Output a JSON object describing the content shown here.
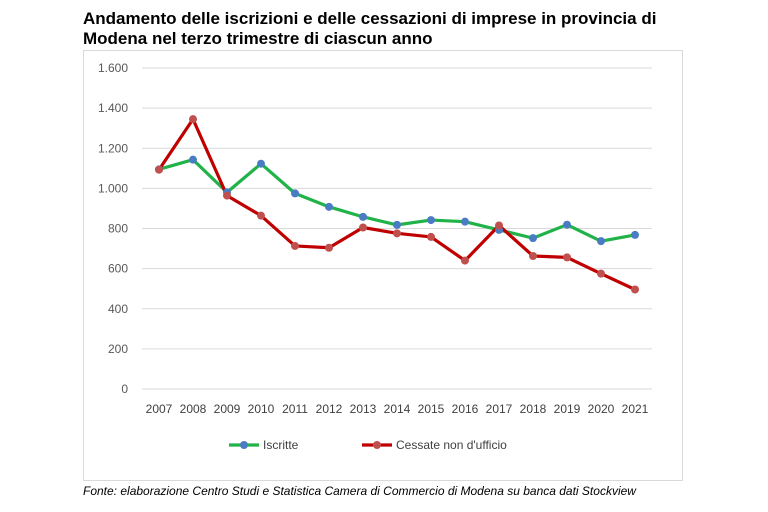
{
  "title": "Andamento delle iscrizioni e delle cessazioni di imprese in provincia di Modena nel terzo trimestre di ciascun anno",
  "source": "Fonte: elaborazione Centro Studi e Statistica Camera di Commercio di Modena su banca dati Stockview",
  "chart_data": {
    "type": "line",
    "title": "Andamento delle iscrizioni e delle cessazioni di imprese in provincia di Modena nel terzo trimestre di ciascun anno",
    "xlabel": "",
    "ylabel": "",
    "categories": [
      "2007",
      "2008",
      "2009",
      "2010",
      "2011",
      "2012",
      "2013",
      "2014",
      "2015",
      "2016",
      "2017",
      "2018",
      "2019",
      "2020",
      "2021"
    ],
    "ylim": [
      0,
      1600
    ],
    "yticks": [
      0,
      200,
      400,
      600,
      800,
      1000,
      1200,
      1400,
      1600
    ],
    "ytick_labels": [
      "0",
      "200",
      "400",
      "600",
      "800",
      "1.000",
      "1.200",
      "1.400",
      "1.600"
    ],
    "grid": true,
    "legend_position": "bottom",
    "series": [
      {
        "name": "Iscritte",
        "line_color": "#21b34a",
        "marker_color": "#4a7cc4",
        "values": [
          1095,
          1143,
          980,
          1123,
          975,
          908,
          858,
          818,
          842,
          834,
          793,
          752,
          819,
          737,
          768
        ]
      },
      {
        "name": "Cessate non d'ufficio",
        "line_color": "#c00000",
        "marker_color": "#c0504d",
        "values": [
          1093,
          1345,
          964,
          864,
          713,
          704,
          805,
          776,
          758,
          640,
          815,
          663,
          656,
          575,
          496
        ]
      }
    ]
  }
}
